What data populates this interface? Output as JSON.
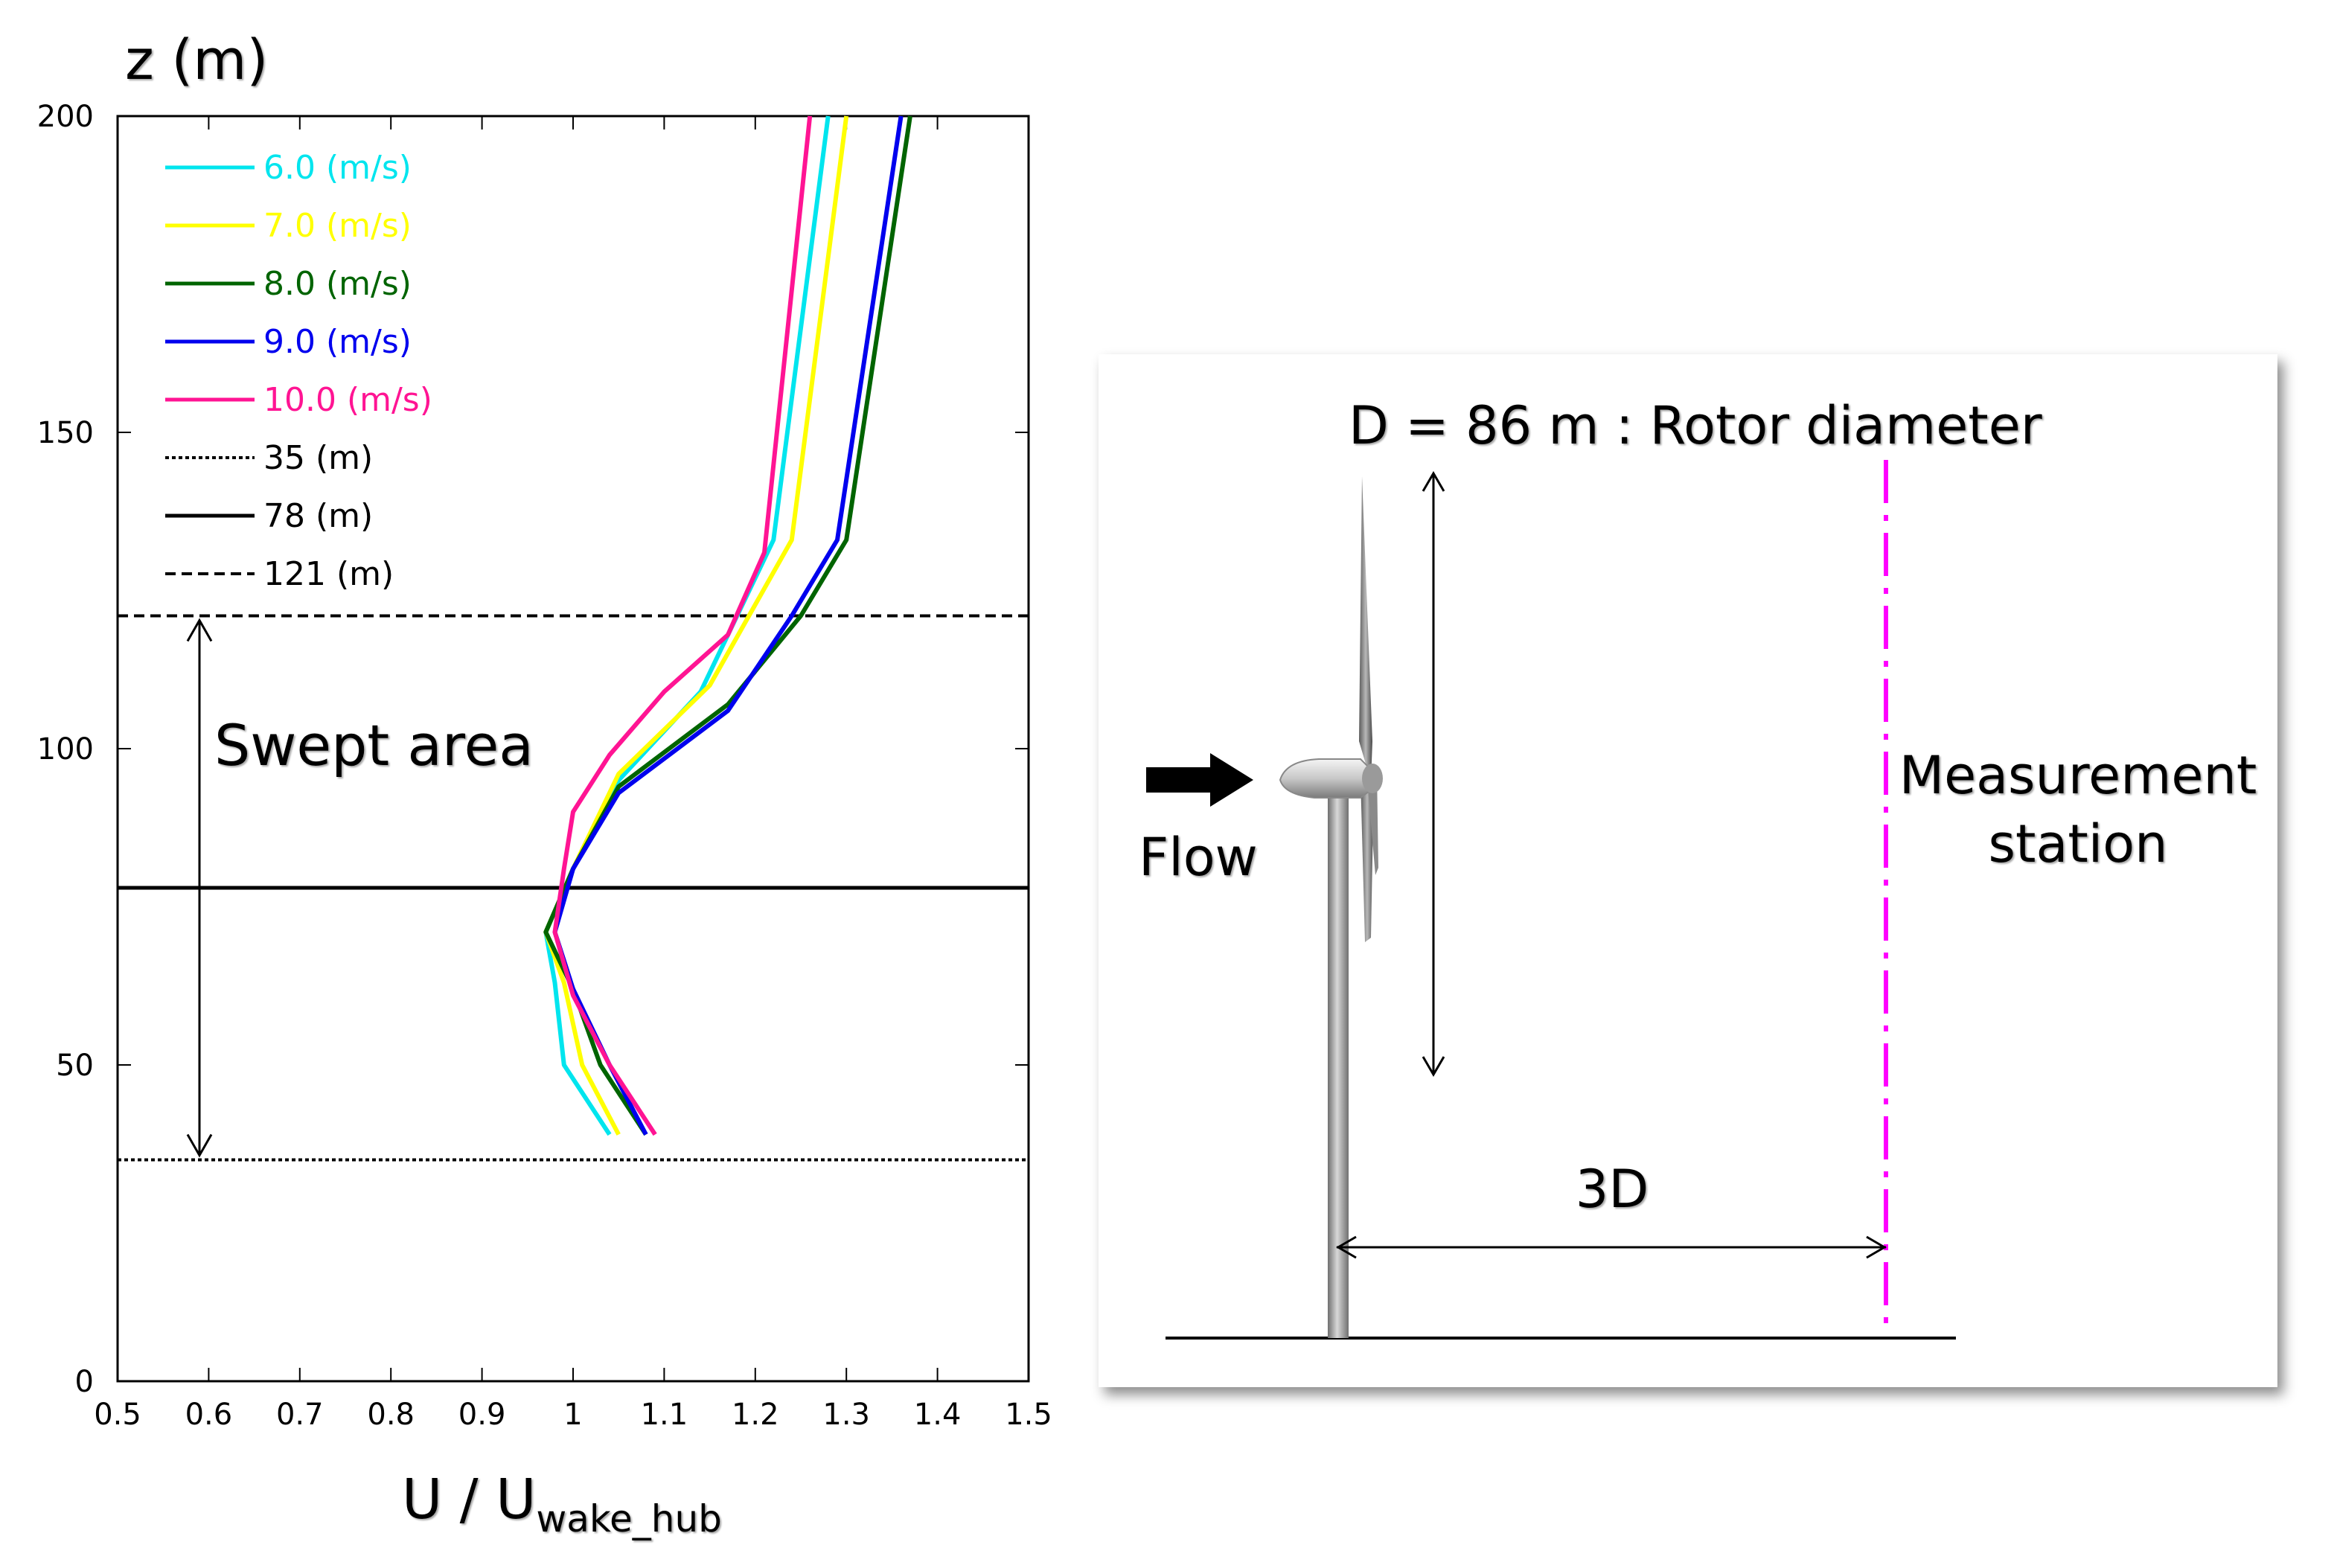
{
  "chart_data": {
    "type": "line",
    "ylabel": "z (m)",
    "xlabel_main": "U / U",
    "xlabel_sub": "wake_hub",
    "xlim": [
      0.5,
      1.5
    ],
    "ylim": [
      0,
      200
    ],
    "xticks": [
      "0.5",
      "0.6",
      "0.7",
      "0.8",
      "0.9",
      "1",
      "1.1",
      "1.2",
      "1.3",
      "1.4",
      "1.5"
    ],
    "yticks": [
      "0",
      "50",
      "100",
      "150",
      "200"
    ],
    "series": [
      {
        "name": "6.0 (m/s)",
        "color": "#00e5ee",
        "points": [
          [
            1.28,
            200
          ],
          [
            1.22,
            133
          ],
          [
            1.14,
            109
          ],
          [
            1.05,
            95
          ],
          [
            1.0,
            81
          ],
          [
            0.97,
            71
          ],
          [
            0.98,
            63
          ],
          [
            0.99,
            50
          ],
          [
            1.04,
            39
          ]
        ]
      },
      {
        "name": "7.0 (m/s)",
        "color": "#ffff00",
        "points": [
          [
            1.3,
            200
          ],
          [
            1.24,
            133
          ],
          [
            1.15,
            110
          ],
          [
            1.05,
            96
          ],
          [
            1.0,
            81
          ],
          [
            0.97,
            71
          ],
          [
            0.99,
            63
          ],
          [
            1.01,
            50
          ],
          [
            1.05,
            39
          ]
        ]
      },
      {
        "name": "8.0 (m/s)",
        "color": "#006400",
        "points": [
          [
            1.37,
            200
          ],
          [
            1.3,
            133
          ],
          [
            1.25,
            121
          ],
          [
            1.17,
            107
          ],
          [
            1.05,
            94
          ],
          [
            1.0,
            81
          ],
          [
            0.97,
            71
          ],
          [
            1.0,
            62
          ],
          [
            1.03,
            50
          ],
          [
            1.08,
            39
          ]
        ]
      },
      {
        "name": "9.0 (m/s)",
        "color": "#0000ee",
        "points": [
          [
            1.36,
            200
          ],
          [
            1.29,
            133
          ],
          [
            1.24,
            121
          ],
          [
            1.17,
            106
          ],
          [
            1.05,
            93
          ],
          [
            1.0,
            81
          ],
          [
            0.98,
            71
          ],
          [
            1.0,
            62
          ],
          [
            1.04,
            50
          ],
          [
            1.08,
            39
          ]
        ]
      },
      {
        "name": "10.0 (m/s)",
        "color": "#ff1493",
        "points": [
          [
            1.26,
            200
          ],
          [
            1.21,
            131
          ],
          [
            1.17,
            118
          ],
          [
            1.1,
            109
          ],
          [
            1.04,
            99
          ],
          [
            1.0,
            90
          ],
          [
            0.99,
            81
          ],
          [
            0.98,
            71
          ],
          [
            1.0,
            61
          ],
          [
            1.04,
            50
          ],
          [
            1.09,
            39
          ]
        ]
      }
    ],
    "hlines": [
      {
        "name": "35 (m)",
        "y": 35,
        "style": "dotted"
      },
      {
        "name": "78 (m)",
        "y": 78,
        "style": "solid"
      },
      {
        "name": "121 (m)",
        "y": 121,
        "style": "dashed"
      }
    ],
    "annotation": "Swept area",
    "annotation_range": [
      35,
      121
    ]
  },
  "diagram": {
    "rotor_label": "D = 86 m : Rotor diameter",
    "flow_label": "Flow",
    "distance_label": "3D",
    "station_label_line1": "Measurement",
    "station_label_line2": "station",
    "station_line_color": "#ff00ff"
  }
}
